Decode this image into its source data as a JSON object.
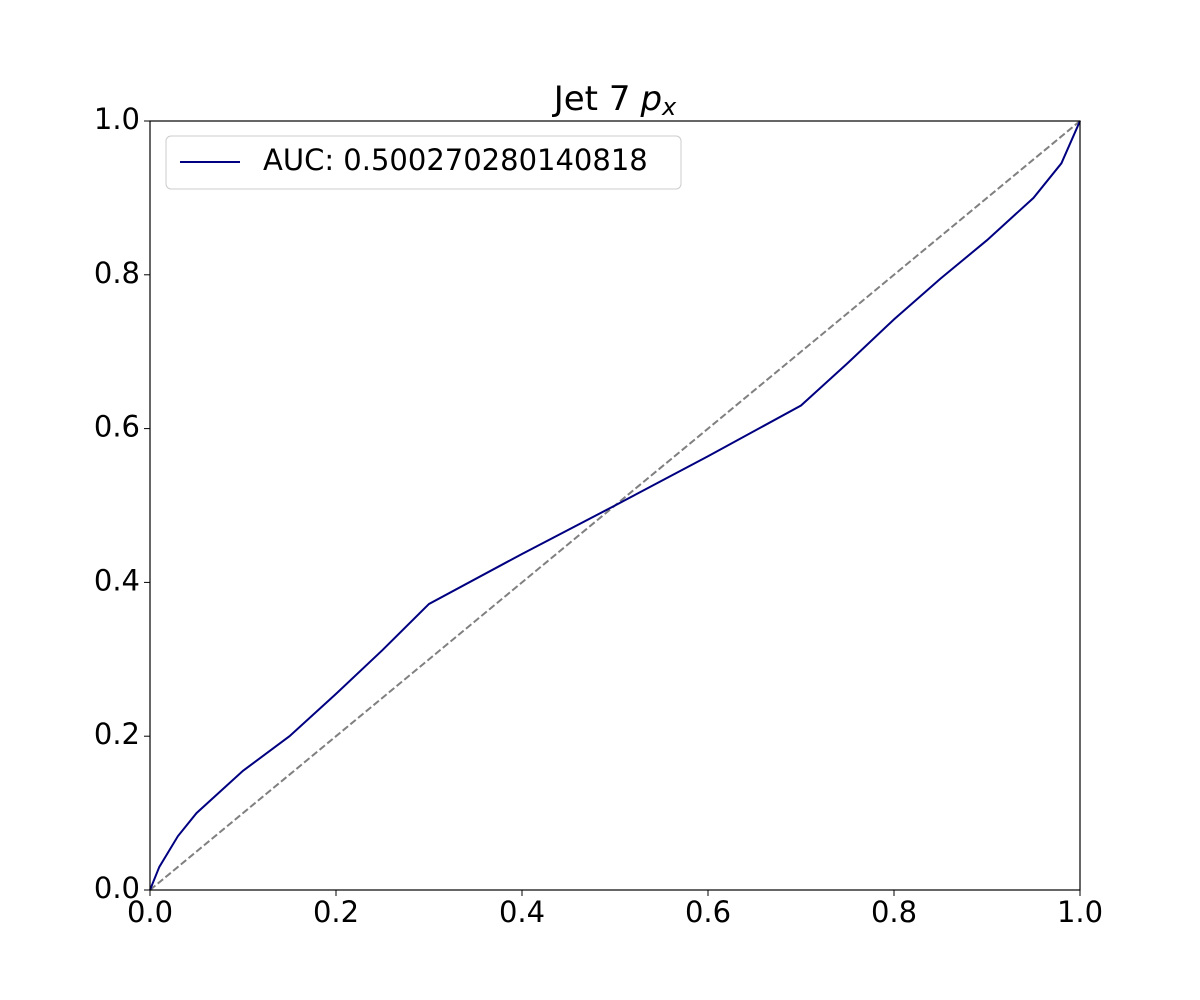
{
  "chart_data": {
    "type": "line",
    "title": "Jet 7",
    "title_symbol": "p",
    "title_subscript": "x",
    "x": [
      0,
      0.01,
      0.03,
      0.05,
      0.1,
      0.15,
      0.2,
      0.25,
      0.3,
      0.4,
      0.5,
      0.6,
      0.7,
      0.75,
      0.8,
      0.85,
      0.9,
      0.95,
      0.98,
      1
    ],
    "series": [
      {
        "name": "AUC: 0.500270280140818",
        "color": "#000080",
        "values": [
          0,
          0.03,
          0.07,
          0.1,
          0.155,
          0.2,
          0.255,
          0.312,
          0.372,
          0.437,
          0.5,
          0.564,
          0.63,
          0.685,
          0.742,
          0.795,
          0.845,
          0.9,
          0.945,
          1
        ]
      }
    ],
    "reference_line": {
      "x": [
        0,
        1
      ],
      "y": [
        0,
        1
      ],
      "color": "#808080"
    },
    "xlim": [
      0,
      1
    ],
    "ylim": [
      0,
      1
    ],
    "xticks": [
      {
        "value": 0,
        "label": "0.0"
      },
      0.2,
      0.4,
      0.6,
      0.8,
      {
        "value": 1,
        "label": "1.0"
      }
    ],
    "yticks": [
      {
        "value": 0,
        "label": "0.0"
      },
      0.2,
      0.4,
      0.6,
      0.8,
      {
        "value": 1,
        "label": "1.0"
      }
    ],
    "legend": "upper left",
    "grid": false
  }
}
